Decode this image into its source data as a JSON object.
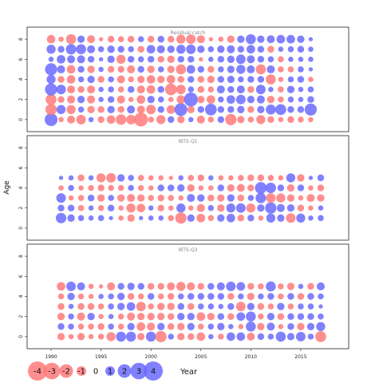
{
  "chart_data": {
    "type": "scatter",
    "subtype": "bubble-residual-panels",
    "ylabel": "Age",
    "xlabel": "Year",
    "colors": {
      "positive": "#6b6bff",
      "negative": "#ff7a7a"
    },
    "x_ticks": [
      "1990",
      "1995",
      "2000",
      "2005",
      "2010",
      "2015"
    ],
    "y_ticks": [
      "0",
      "2",
      "4",
      "6",
      "8"
    ],
    "xlim": [
      1987.6,
      2019.8
    ],
    "ylim": [
      -1.2,
      9.2
    ],
    "legend": {
      "values": [
        -4,
        -3,
        -2,
        -1,
        0,
        1,
        2,
        3,
        4
      ],
      "labels": [
        "-4",
        "-3",
        "-2",
        "-1",
        "0",
        "1",
        "2",
        "3",
        "4"
      ],
      "placement": "bottom-left"
    },
    "panels": [
      {
        "title": "Residual catch",
        "years": [
          1990,
          2016
        ],
        "ages": [
          0,
          8
        ],
        "residuals": [
          [
            1.8,
            -0.3,
            -0.7,
            -1.0,
            0.3,
            -0.5,
            -0.8,
            -1.2,
            -1.0,
            -2.1,
            -0.4,
            -0.9,
            0.5,
            -0.6,
            0.3,
            -0.7,
            -0.4,
            0.5,
            -1.4,
            -0.6,
            -0.4,
            -0.9,
            -0.5,
            -0.3,
            -0.5,
            -0.4,
            -0.3
          ],
          [
            -1.4,
            0.9,
            -0.9,
            0.4,
            -0.6,
            -0.5,
            0.6,
            -0.5,
            0.7,
            -0.7,
            -1.0,
            0.5,
            -0.8,
            1.8,
            -0.6,
            0.5,
            1.5,
            0.5,
            0.5,
            0.6,
            -0.5,
            0.6,
            1.1,
            1.3,
            0.5,
            0.5,
            1.6
          ],
          [
            -1.3,
            -0.5,
            -0.7,
            0.6,
            -0.7,
            0.3,
            0.5,
            -0.7,
            -0.3,
            -0.8,
            0.6,
            0.4,
            -0.3,
            -0.8,
            2.1,
            -0.6,
            -0.8,
            0.4,
            0.8,
            1.0,
            0.6,
            0.7,
            -0.6,
            -0.4,
            0.4,
            0.3,
            0.5
          ],
          [
            1.6,
            1.0,
            -0.7,
            -0.5,
            -0.7,
            0.3,
            0.4,
            -0.4,
            0.5,
            -0.7,
            -0.8,
            0.5,
            -1.5,
            -1.0,
            0.4,
            -0.5,
            -0.4,
            0.7,
            0.5,
            0.7,
            -0.5,
            1.0,
            0.3,
            -0.4,
            0.6,
            0.3,
            0.4
          ],
          [
            0.9,
            -0.5,
            -0.8,
            0.4,
            0.6,
            -0.5,
            0.4,
            -0.7,
            -0.4,
            -0.6,
            -0.8,
            -0.6,
            -0.8,
            -0.5,
            0.5,
            -0.5,
            -0.6,
            0.5,
            0.6,
            0.4,
            0.5,
            0.5,
            -1.1,
            -0.3,
            0.4,
            0.5,
            -0.3
          ],
          [
            1.6,
            0.7,
            -0.8,
            0.5,
            -0.6,
            0.3,
            -0.5,
            -0.5,
            -0.7,
            0.5,
            -0.6,
            0.4,
            -0.6,
            -1.1,
            0.8,
            0.5,
            -0.5,
            0.4,
            0.6,
            0.9,
            0.7,
            -1.1,
            0.7,
            -0.4,
            -0.4,
            0.4,
            0.2
          ],
          [
            0.3,
            0.8,
            0.7,
            0.7,
            0.5,
            0.2,
            0.6,
            -0.9,
            0.5,
            0.4,
            0.5,
            -0.5,
            -0.6,
            0.5,
            0.5,
            -0.2,
            0.3,
            0.5,
            0.6,
            1.0,
            0.7,
            0.5,
            0.4,
            -0.4,
            0.3,
            0.3,
            0.3
          ],
          [
            0.9,
            0.5,
            1.2,
            1.1,
            0.7,
            0.4,
            0.6,
            0.5,
            0.4,
            -0.5,
            0.8,
            0.7,
            0.6,
            0.9,
            1.0,
            0.6,
            0.4,
            0.6,
            0.7,
            0.5,
            0.8,
            0.5,
            -0.5,
            0.3,
            0.4,
            0.5,
            0.3
          ],
          [
            -0.8,
            -0.3,
            -1.1,
            0.6,
            -0.7,
            -0.2,
            -0.5,
            -0.4,
            -0.5,
            0.4,
            -0.5,
            0.5,
            -0.5,
            -0.9,
            -1.0,
            -0.7,
            -0.2,
            -0.3,
            -0.6,
            0.6,
            1.1,
            0.6,
            0.7,
            0.8,
            0.8,
            0.6,
            0.2
          ]
        ]
      },
      {
        "title": "IBTS-Q1",
        "years": [
          1991,
          2017
        ],
        "ages": [
          1,
          5
        ],
        "residuals": [
          [
            1.2,
            0.6,
            0.4,
            0.3,
            0.4,
            0.2,
            -0.3,
            -0.6,
            0.2,
            0.3,
            0.3,
            -0.4,
            -1.4,
            0.6,
            -0.8,
            -0.4,
            0.6,
            0.8,
            -0.5,
            0.5,
            -0.3,
            0.9,
            0.6,
            -1.0,
            0.9,
            0.3,
            0.4
          ],
          [
            0.5,
            0.5,
            -0.4,
            0.3,
            -0.4,
            0.5,
            -0.3,
            -0.9,
            -0.8,
            0.3,
            -0.5,
            -0.3,
            0.9,
            -0.3,
            -0.7,
            0.4,
            -0.6,
            0.9,
            1.0,
            -0.9,
            0.6,
            1.4,
            0.7,
            0.6,
            -0.5,
            -0.3,
            0.3
          ],
          [
            1.0,
            -0.3,
            -0.4,
            0.5,
            -0.6,
            0.4,
            -0.6,
            -0.7,
            -0.6,
            -0.4,
            -0.5,
            -0.4,
            -0.3,
            0.7,
            0.6,
            -0.5,
            -0.6,
            0.6,
            -0.5,
            0.4,
            1.2,
            -1.0,
            -0.9,
            -0.6,
            -0.3,
            -0.7,
            -0.6
          ],
          [
            -0.3,
            0.4,
            -0.3,
            -0.4,
            -0.5,
            -0.4,
            -0.4,
            0.4,
            -0.4,
            -0.3,
            0.5,
            0.5,
            0.6,
            -0.6,
            -0.3,
            -0.3,
            0.5,
            -0.6,
            -0.7,
            -0.5,
            1.5,
            1.2,
            0.5,
            -0.6,
            0.5,
            -0.3,
            -0.5
          ],
          [
            0.2,
            0.3,
            -0.5,
            0.3,
            -0.9,
            -1.0,
            0.6,
            0.4,
            -0.4,
            -0.3,
            -0.3,
            -0.2,
            0.3,
            -0.4,
            -0.5,
            0.3,
            -0.3,
            -0.3,
            -0.4,
            -0.5,
            -0.5,
            -0.4,
            -0.3,
            0.9,
            -0.6,
            0.2,
            0.5
          ]
        ]
      },
      {
        "title": "IBTS-Q3",
        "years": [
          1991,
          2017
        ],
        "ages": [
          0,
          5
        ],
        "residuals": [
          [
            -0.6,
            -0.3,
            -0.6,
            -0.3,
            -0.4,
            -0.9,
            1.1,
            1.1,
            -0.6,
            1.1,
            -1.4,
            0.4,
            -0.6,
            -0.5,
            -0.8,
            0.3,
            -0.4,
            0.8,
            0.8,
            -0.7,
            0.5,
            0.4,
            1.1,
            0.6,
            1.0,
            0.4,
            -1.3
          ],
          [
            0.5,
            0.4,
            -0.4,
            -0.4,
            -0.5,
            0.4,
            -0.4,
            0.6,
            -0.8,
            -0.7,
            0.6,
            -0.5,
            -0.6,
            0.6,
            -0.4,
            0.4,
            0.6,
            0.3,
            -0.3,
            1.1,
            -0.6,
            0.7,
            -0.3,
            0.5,
            -0.6,
            0.6,
            0.9
          ],
          [
            -0.6,
            0.4,
            -0.7,
            0.6,
            -0.3,
            0.3,
            -0.4,
            -0.7,
            -0.6,
            -0.6,
            -0.6,
            -0.5,
            0.6,
            0.6,
            -0.8,
            -0.6,
            0.5,
            -0.5,
            0.8,
            1.1,
            -0.4,
            0.6,
            -0.5,
            0.5,
            0.5,
            0.5,
            0.4
          ],
          [
            -0.5,
            0.3,
            -0.5,
            -0.5,
            -0.4,
            0.4,
            0.6,
            0.8,
            -1.0,
            -0.4,
            -0.6,
            -0.6,
            0.5,
            -0.5,
            0.4,
            0.4,
            0.3,
            0.5,
            -1.0,
            0.6,
            -0.5,
            -0.4,
            0.6,
            -0.4,
            0.4,
            0.4,
            0.2
          ],
          [
            -0.4,
            0.6,
            -0.4,
            -0.3,
            0.3,
            0.4,
            0.6,
            -0.5,
            -0.4,
            0.5,
            -0.4,
            -0.5,
            0.4,
            0.5,
            0.5,
            0.5,
            0.5,
            -0.5,
            0.4,
            -0.6,
            0.4,
            0.5,
            -0.4,
            0.5,
            -0.5,
            0.5,
            0.4
          ],
          [
            -0.8,
            1.0,
            0.7,
            -0.3,
            -0.2,
            -0.7,
            0.5,
            0.6,
            0.5,
            -0.5,
            -0.5,
            -0.7,
            -0.9,
            -0.7,
            -0.5,
            0.5,
            0.7,
            1.0,
            0.8,
            -0.5,
            -0.4,
            1.1,
            -0.4,
            -0.6,
            0.3,
            -0.5,
            0.7
          ]
        ]
      }
    ]
  }
}
